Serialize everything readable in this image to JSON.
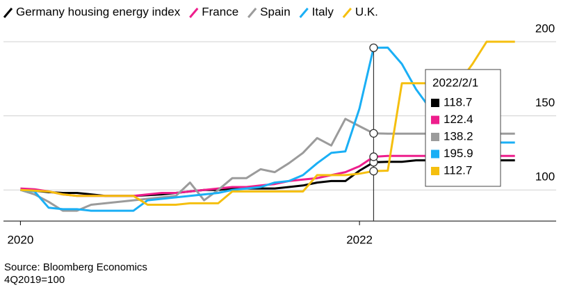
{
  "chart_data": {
    "type": "line",
    "x": [
      "2020/1/1",
      "2020/2/1",
      "2020/3/1",
      "2020/4/1",
      "2020/5/1",
      "2020/6/1",
      "2020/7/1",
      "2020/8/1",
      "2020/9/1",
      "2020/10/1",
      "2020/11/1",
      "2020/12/1",
      "2021/1/1",
      "2021/2/1",
      "2021/3/1",
      "2021/4/1",
      "2021/5/1",
      "2021/6/1",
      "2021/7/1",
      "2021/8/1",
      "2021/9/1",
      "2021/10/1",
      "2021/11/1",
      "2021/12/1",
      "2022/1/1",
      "2022/2/1",
      "2022/3/1",
      "2022/4/1",
      "2022/5/1",
      "2022/6/1",
      "2022/7/1",
      "2022/8/1",
      "2022/9/1",
      "2022/10/1",
      "2022/11/1",
      "2022/12/1"
    ],
    "series": [
      {
        "name": "Germany housing energy index",
        "color": "#000000",
        "values": [
          100,
          99.5,
          98.5,
          98,
          98,
          97,
          96,
          96,
          96,
          96.5,
          97,
          98,
          99,
          100,
          100,
          101,
          101,
          101,
          101,
          102,
          103,
          105,
          106,
          106,
          113,
          118.7,
          119,
          119,
          120,
          120,
          120,
          120,
          120,
          120,
          120,
          120
        ]
      },
      {
        "name": "France",
        "color": "#ee1e8c",
        "values": [
          101,
          100.5,
          99,
          97,
          96,
          96,
          96,
          96,
          96,
          97,
          98,
          98,
          99,
          100,
          101,
          102,
          102,
          103,
          104,
          106,
          107,
          108,
          110,
          112,
          116,
          122.4,
          123,
          123,
          123,
          123,
          123,
          123,
          123,
          123,
          123,
          123
        ]
      },
      {
        "name": "Spain",
        "color": "#9b9b9b",
        "values": [
          100,
          97,
          92,
          86,
          86,
          90,
          91,
          92,
          93,
          94,
          95,
          96,
          105,
          93,
          100,
          108,
          108,
          114,
          112,
          118,
          125,
          135,
          130,
          148,
          143,
          138.2,
          138,
          138,
          138,
          138,
          138,
          138,
          138,
          138,
          138,
          138
        ]
      },
      {
        "name": "Italy",
        "color": "#1aaff5",
        "values": [
          100,
          99,
          88,
          87,
          87,
          86,
          86,
          86,
          86,
          93,
          94,
          95,
          96,
          97,
          98,
          100,
          101,
          102,
          105,
          106,
          110,
          118,
          125,
          126,
          155,
          195.9,
          196,
          185,
          168,
          155,
          145,
          138,
          134,
          132,
          132,
          132
        ]
      },
      {
        "name": "U.K.",
        "color": "#f5bf0f",
        "values": [
          100,
          99.5,
          99,
          97,
          96,
          96,
          96,
          96,
          96,
          90,
          90,
          90,
          91,
          91,
          91,
          99,
          99,
          99,
          99,
          99,
          99,
          110,
          110,
          110,
          111,
          112.7,
          113,
          172,
          172,
          172,
          172,
          172,
          185,
          200,
          200,
          200
        ]
      }
    ],
    "xlim": [
      2019.9,
      2023.16
    ],
    "xticks": [
      2020,
      2022
    ],
    "ylim": [
      79,
      200
    ],
    "yticks": [
      100,
      150,
      200
    ],
    "grid": true,
    "tooltip_index": 25,
    "source": "Source: Bloomberg Economics",
    "note": "4Q2019=100"
  }
}
